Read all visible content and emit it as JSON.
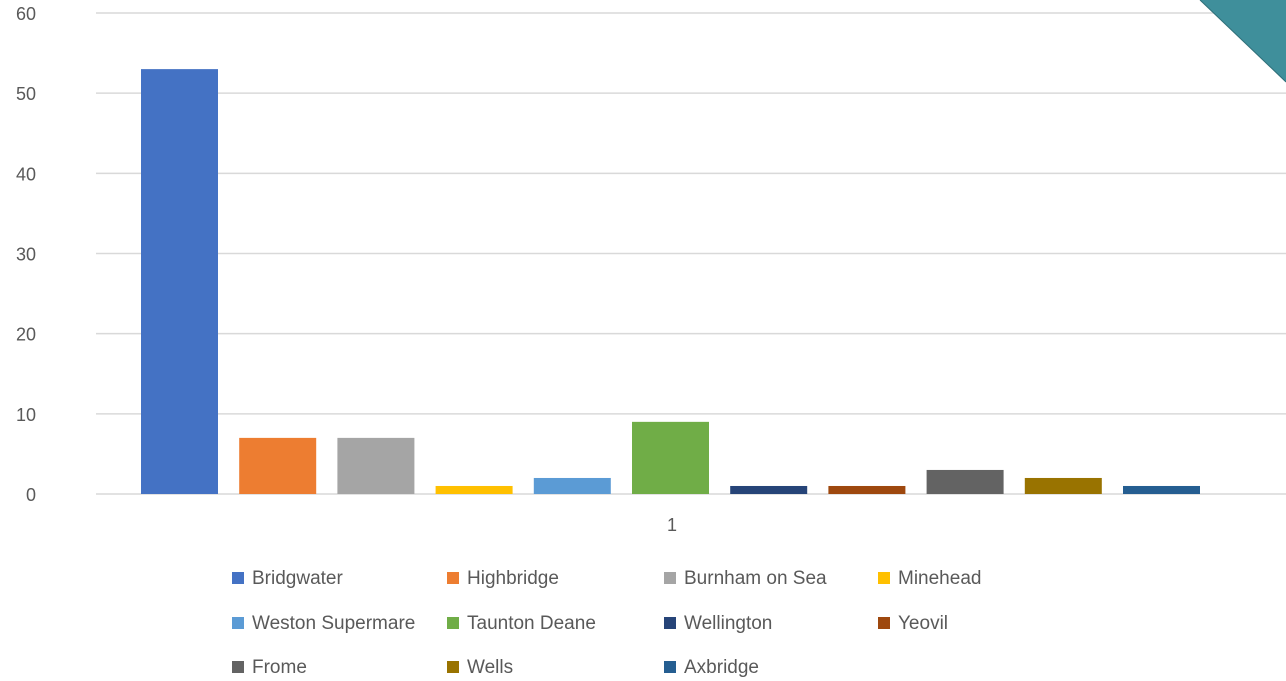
{
  "chart_data": {
    "type": "bar",
    "categories": [
      "1"
    ],
    "series": [
      {
        "name": "Bridgwater",
        "values": [
          53
        ],
        "color": "#4472C4"
      },
      {
        "name": "Highbridge",
        "values": [
          7
        ],
        "color": "#ED7D31"
      },
      {
        "name": "Burnham on Sea",
        "values": [
          7
        ],
        "color": "#A5A5A5"
      },
      {
        "name": "Minehead",
        "values": [
          1
        ],
        "color": "#FFC000"
      },
      {
        "name": "Weston Supermare",
        "values": [
          2
        ],
        "color": "#5B9BD5"
      },
      {
        "name": "Taunton Deane",
        "values": [
          9
        ],
        "color": "#70AD47"
      },
      {
        "name": "Wellington",
        "values": [
          1
        ],
        "color": "#264478"
      },
      {
        "name": "Yeovil",
        "values": [
          1
        ],
        "color": "#9E480E"
      },
      {
        "name": "Frome",
        "values": [
          3
        ],
        "color": "#636363"
      },
      {
        "name": "Wells",
        "values": [
          2
        ],
        "color": "#997300"
      },
      {
        "name": "Axbridge",
        "values": [
          1
        ],
        "color": "#255E91"
      }
    ],
    "yticks": [
      "0",
      "10",
      "20",
      "30",
      "40",
      "50",
      "60"
    ],
    "ylim": [
      0,
      60
    ],
    "grid": true,
    "legend_position": "bottom",
    "title": "",
    "xlabel": "",
    "ylabel": ""
  },
  "decoration": {
    "corner_accent_color": "#3F8F9B"
  }
}
